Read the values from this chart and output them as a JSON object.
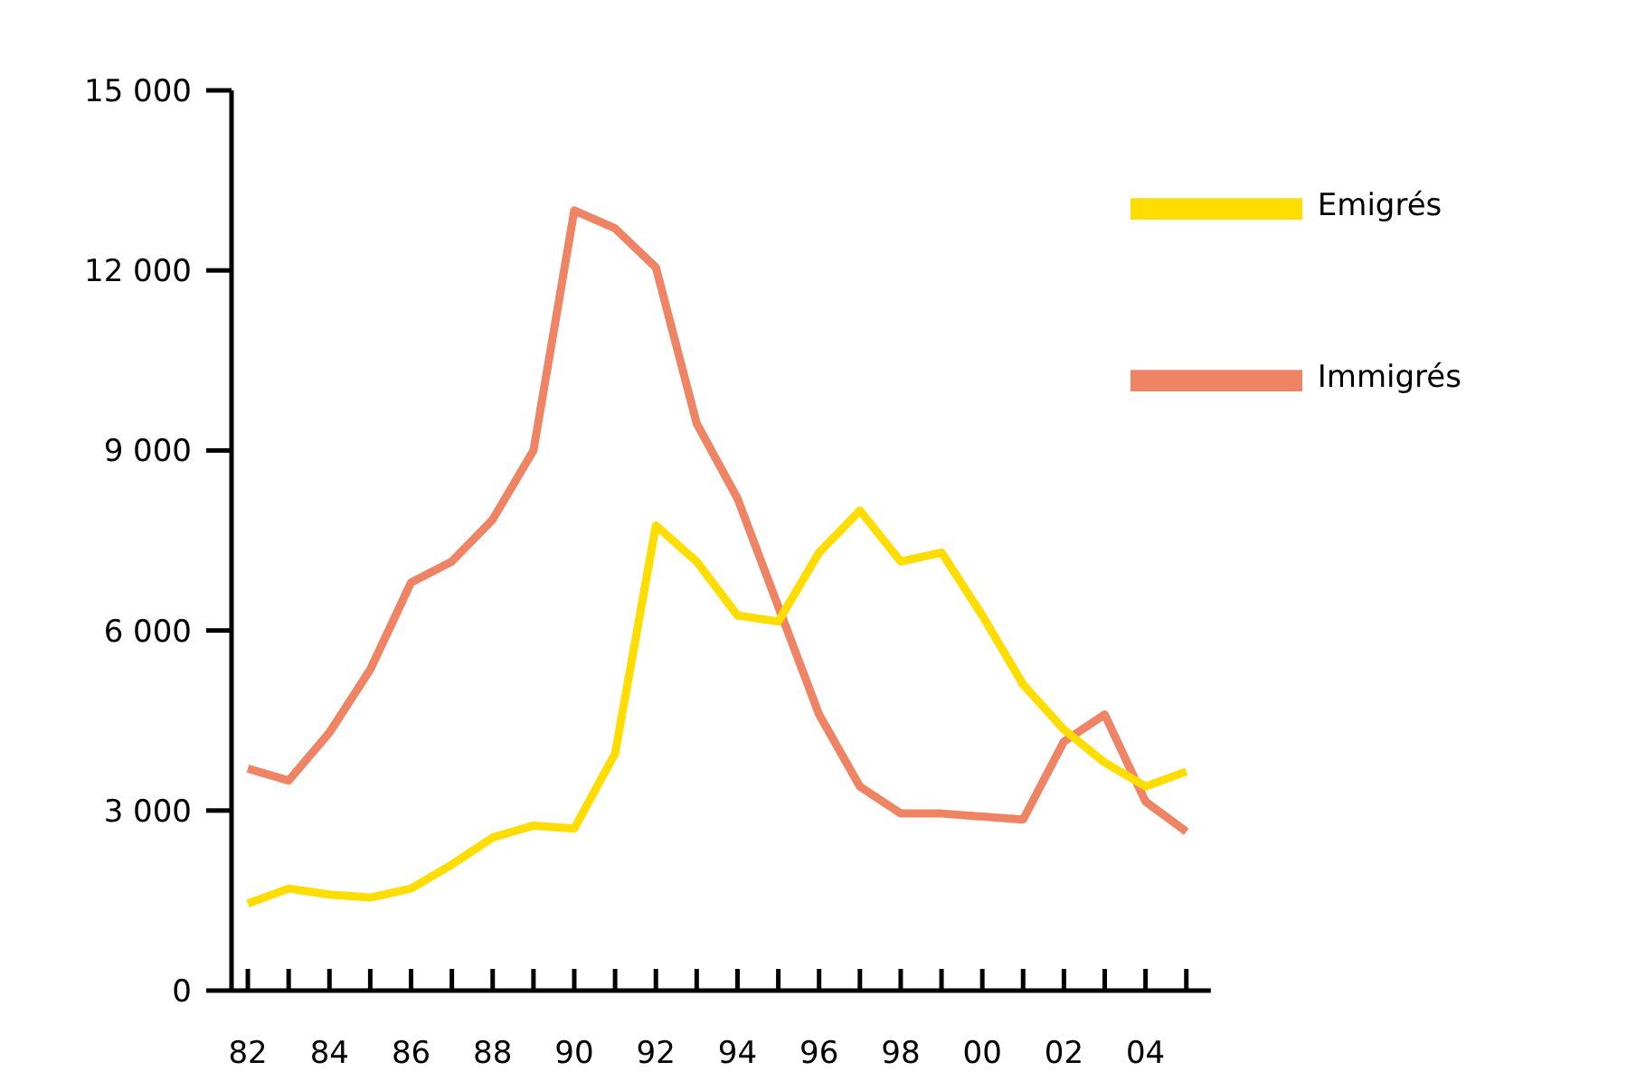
{
  "chart_data": {
    "type": "line",
    "x": [
      1982,
      1983,
      1984,
      1985,
      1986,
      1987,
      1988,
      1989,
      1990,
      1991,
      1992,
      1993,
      1994,
      1995,
      1996,
      1997,
      1998,
      1999,
      2000,
      2001,
      2002,
      2003,
      2004,
      2005
    ],
    "series": [
      {
        "name": "Immigrés",
        "color": "#ef8465",
        "values": [
          3700,
          3500,
          4300,
          5350,
          6800,
          7150,
          7850,
          9000,
          13000,
          12700,
          12050,
          9450,
          8200,
          6400,
          4600,
          3400,
          2950,
          2950,
          2900,
          2850,
          4150,
          4600,
          3150,
          2650
        ]
      },
      {
        "name": "Emigrés",
        "color": "#ffdd00",
        "values": [
          1450,
          1700,
          1600,
          1550,
          1700,
          2100,
          2550,
          2750,
          2700,
          3950,
          7750,
          7150,
          6250,
          6150,
          7300,
          8000,
          7150,
          7300,
          6250,
          5100,
          4350,
          3800,
          3400,
          3650
        ]
      }
    ],
    "xlim": [
      1981.6,
      2005.6
    ],
    "xticks": [
      {
        "value": 1982,
        "label": "82"
      },
      {
        "value": 1983,
        "label": null
      },
      {
        "value": 1984,
        "label": "84"
      },
      {
        "value": 1985,
        "label": null
      },
      {
        "value": 1986,
        "label": "86"
      },
      {
        "value": 1987,
        "label": null
      },
      {
        "value": 1988,
        "label": "88"
      },
      {
        "value": 1989,
        "label": null
      },
      {
        "value": 1990,
        "label": "90"
      },
      {
        "value": 1991,
        "label": null
      },
      {
        "value": 1992,
        "label": "92"
      },
      {
        "value": 1993,
        "label": null
      },
      {
        "value": 1994,
        "label": "94"
      },
      {
        "value": 1995,
        "label": null
      },
      {
        "value": 1996,
        "label": "96"
      },
      {
        "value": 1997,
        "label": null
      },
      {
        "value": 1998,
        "label": "98"
      },
      {
        "value": 1999,
        "label": null
      },
      {
        "value": 2000,
        "label": "00"
      },
      {
        "value": 2001,
        "label": null
      },
      {
        "value": 2002,
        "label": "02"
      },
      {
        "value": 2003,
        "label": null
      },
      {
        "value": 2004,
        "label": "04"
      },
      {
        "value": 2005,
        "label": null
      }
    ],
    "ylim": [
      0,
      15000
    ],
    "yticks": [
      {
        "value": 0,
        "label": "0"
      },
      {
        "value": 3000,
        "label": "3 000"
      },
      {
        "value": 6000,
        "label": "6 000"
      },
      {
        "value": 9000,
        "label": "9 000"
      },
      {
        "value": 12000,
        "label": "12 000"
      },
      {
        "value": 15000,
        "label": "15 000"
      }
    ],
    "grid": false,
    "legend": "top right",
    "marker": "none",
    "line_style": "solid"
  }
}
